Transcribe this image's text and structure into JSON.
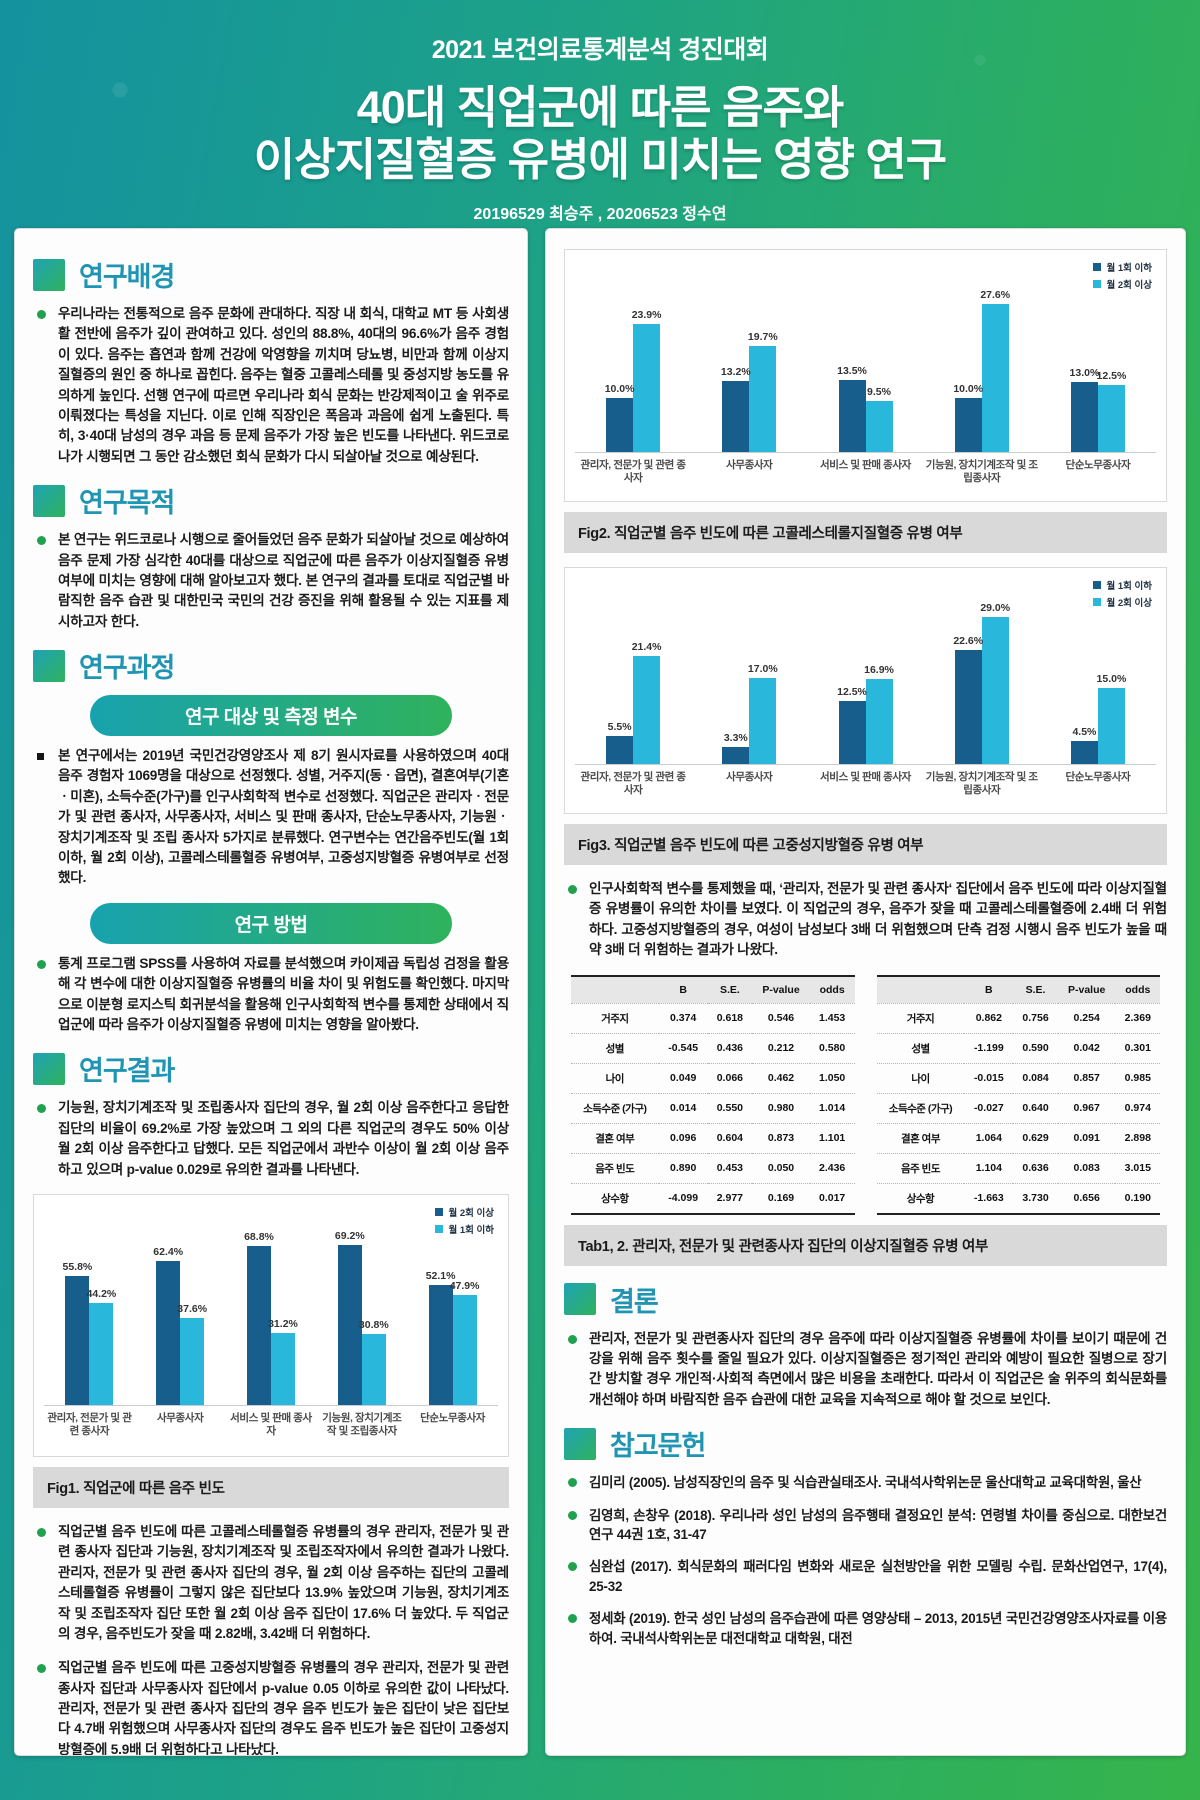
{
  "header": {
    "event": "2021 보건의료통계분석 경진대회",
    "title_line1": "40대 직업군에 따른 음주와",
    "title_line2": "이상지질혈증 유병에 미치는 영향 연구",
    "authors": "20196529 최승주 , 20206523 정수연"
  },
  "colors": {
    "bar_dark": "#175e8c",
    "bar_light": "#29b7dc",
    "accent_teal": "#2095b3",
    "bullet_green": "#21a04d",
    "pill_gradient_from": "#18a2ae",
    "pill_gradient_to": "#2fb25c",
    "caption_bg": "#d9d9d9"
  },
  "left": {
    "background_title": "연구배경",
    "background_body": "우리나라는 전통적으로 음주 문화에 관대하다. 직장 내 회식, 대학교 MT 등 사회생활 전반에 음주가 깊이 관여하고 있다. 성인의 88.8%, 40대의 96.6%가 음주 경험이 있다. 음주는 흡연과 함께 건강에 악영향을 끼치며 당뇨병, 비만과 함께 이상지질혈증의 원인 중 하나로 꼽힌다. 음주는 혈중 고콜레스테롤 및 중성지방 농도를 유의하게 높인다. 선행 연구에 따르면 우리나라 회식 문화는 반강제적이고 술 위주로 이뤄졌다는 특성을 지닌다. 이로 인해 직장인은 폭음과 과음에 쉽게 노출된다. 특히, 3·40대 남성의 경우 과음 등 문제 음주가 가장 높은 빈도를 나타낸다. 위드코로나가 시행되면 그 동안 감소했던 회식 문화가 다시 되살아날 것으로 예상된다.",
    "purpose_title": "연구목적",
    "purpose_body": "본 연구는 위드코로나 시행으로 줄어들었던 음주 문화가 되살아날 것으로 예상하여 음주 문제 가장 심각한 40대를 대상으로 직업군에 따른 음주가 이상지질혈증 유병 여부에 미치는 영향에 대해 알아보고자 했다. 본 연구의 결과를 토대로 직업군별 바람직한 음주 습관 및 대한민국 국민의 건강 증진을 위해 활용될 수 있는 지표를 제시하고자 한다.",
    "process_title": "연구과정",
    "subjects_pill": "연구 대상 및 측정 변수",
    "subjects_body": "본 연구에서는 2019년 국민건강영양조사 제 8기 원시자료를 사용하였으며 40대 음주 경험자 1069명을 대상으로 선정했다. 성별, 거주지(동ㆍ읍면), 결혼여부(기혼ㆍ미혼), 소득수준(가구)를 인구사회학적 변수로 선정했다. 직업군은 관리자ㆍ전문가 및 관련 종사자, 사무종사자, 서비스 및 판매 종사자, 단순노무종사자, 기능원ㆍ장치기계조작 및 조립 종사자 5가지로 분류했다. 연구변수는 연간음주빈도(월 1회 이하, 월 2회 이상), 고콜레스테롤혈증 유병여부, 고중성지방혈증 유병여부로 선정했다.",
    "method_pill": "연구 방법",
    "method_body": "통계 프로그램 SPSS를 사용하여 자료를 분석했으며 카이제곱 독립성 검정을 활용해 각 변수에 대한 이상지질혈증 유병률의 비율 차이 및 위험도를 확인했다. 마지막으로 이분형 로지스틱 회귀분석을 활용해 인구사회학적 변수를 통제한 상태에서 직업군에 따라 음주가 이상지질혈증 유병에 미치는 영향을 알아봤다.",
    "results_title": "연구결과",
    "results_body": "기능원, 장치기계조작 및 조립종사자 집단의 경우, 월 2회 이상 음주한다고 응답한 집단의 비율이 69.2%로 가장 높았으며 그 외의 다른 직업군의 경우도 50% 이상 월 2회 이상 음주한다고 답했다. 모든 직업군에서 과반수 이상이 월 2회 이상 음주하고 있으며 p-value 0.029로 유의한 결과를 나타낸다.",
    "fig1_caption": "Fig1. 직업군에 따른 음주 빈도",
    "finding1": "직업군별 음주 빈도에 따른 고콜레스테롤혈증 유병률의 경우 관리자, 전문가 및 관련 종사자 집단과 기능원, 장치기계조작 및 조립조작자에서 유의한 결과가 나왔다. 관리자, 전문가 및 관련 종사자 집단의 경우, 월 2회 이상 음주하는 집단의 고콜레스테롤혈증 유병률이 그렇지 않은 집단보다 13.9% 높았으며 기능원, 장치기계조작 및 조립조작자 집단 또한 월 2회 이상 음주 집단이 17.6% 더 높았다.  두 직업군의 경우, 음주빈도가 잦을 때 2.82배, 3.42배 더 위험하다.",
    "finding2": "직업군별 음주 빈도에 따른 고중성지방혈증 유병률의 경우 관리자, 전문가 및 관련 종사자 집단과 사무종사자 집단에서 p-value 0.05 이하로 유의한 값이 나타났다. 관리자, 전문가 및 관련 종사자 집단의 경우 음주 빈도가 높은 집단이 낮은 집단보다 4.7배 위험했으며 사무종사자 집단의 경우도 음주 빈도가 높은 집단이 고중성지방혈증에 5.9배 더 위험하다고 나타났다."
  },
  "right": {
    "fig2_caption": "Fig2. 직업군별 음주 빈도에 따른 고콜레스테롤지질혈증 유병 여부",
    "fig3_caption": "Fig3. 직업군별 음주 빈도에 따른 고중성지방혈증 유병 여부",
    "regression_note": "인구사회학적 변수를 통제했을 때, ‘관리자, 전문가 및 관련 종사자‘ 집단에서 음주 빈도에 따라 이상지질혈증 유병률이 유의한 차이를 보였다. 이 직업군의 경우, 음주가 잦을 때 고콜레스테롤혈증에 2.4배 더 위험하다. 고중성지방혈증의 경우, 여성이 남성보다 3배 더 위험했으며 단측 검정 시행시 음주 빈도가 높을 때 약 3배 더 위험하는 결과가 나왔다.",
    "tables_caption": "Tab1, 2. 관리자, 전문가 및 관련종사자 집단의 이상지질혈증 유병 여부",
    "conclusion_title": "결론",
    "conclusion_body": "관리자, 전문가 및 관련종사자 집단의 경우 음주에 따라 이상지질혈증 유병률에 차이를 보이기 때문에 건강을 위해 음주 횟수를 줄일 필요가 있다. 이상지질혈증은 정기적인 관리와 예방이 필요한 질병으로 장기간 방치할 경우 개인적·사회적 측면에서 많은 비용을 초래한다. 따라서 이 직업군은 술 위주의 회식문화를 개선해야 하며 바람직한 음주 습관에 대한 교육을 지속적으로 해야 할 것으로 보인다.",
    "references_title": "참고문헌",
    "references": [
      "김미리 (2005). 남성직장인의 음주 및 식습관실태조사. 국내석사학위논문 울산대학교 교육대학원, 울산",
      "김영희, 손창우 (2018). 우리나라 성인 남성의 음주행태 결정요인 분석: 연령별 차이를 중심으로. 대한보건연구 44권 1호, 31-47",
      "심완섭 (2017). 회식문화의 패러다임 변화와 새로운 실천방안을 위한 모델링 수립. 문화산업연구, 17(4), 25-32",
      "정세화 (2019). 한국 성인 남성의 음주습관에 따른 영양상태 – 2013, 2015년 국민건강영양조사자료를 이용하여. 국내석사학위논문 대전대학교 대학원, 대전"
    ]
  },
  "tables": {
    "columns": [
      "B",
      "S.E.",
      "P-value",
      "odds"
    ],
    "tab1": {
      "rows": [
        {
          "label": "거주지",
          "values": [
            "0.374",
            "0.618",
            "0.546",
            "1.453"
          ]
        },
        {
          "label": "성별",
          "values": [
            "-0.545",
            "0.436",
            "0.212",
            "0.580"
          ]
        },
        {
          "label": "나이",
          "values": [
            "0.049",
            "0.066",
            "0.462",
            "1.050"
          ]
        },
        {
          "label": "소득수준 (가구)",
          "values": [
            "0.014",
            "0.550",
            "0.980",
            "1.014"
          ]
        },
        {
          "label": "결혼 여부",
          "values": [
            "0.096",
            "0.604",
            "0.873",
            "1.101"
          ]
        },
        {
          "label": "음주 빈도",
          "values": [
            "0.890",
            "0.453",
            "0.050",
            "2.436"
          ]
        },
        {
          "label": "상수항",
          "values": [
            "-4.099",
            "2.977",
            "0.169",
            "0.017"
          ]
        }
      ]
    },
    "tab2": {
      "rows": [
        {
          "label": "거주지",
          "values": [
            "0.862",
            "0.756",
            "0.254",
            "2.369"
          ]
        },
        {
          "label": "성별",
          "values": [
            "-1.199",
            "0.590",
            "0.042",
            "0.301"
          ]
        },
        {
          "label": "나이",
          "values": [
            "-0.015",
            "0.084",
            "0.857",
            "0.985"
          ]
        },
        {
          "label": "소득수준 (가구)",
          "values": [
            "-0.027",
            "0.640",
            "0.967",
            "0.974"
          ]
        },
        {
          "label": "결혼 여부",
          "values": [
            "1.064",
            "0.629",
            "0.091",
            "2.898"
          ]
        },
        {
          "label": "음주 빈도",
          "values": [
            "1.104",
            "0.636",
            "0.083",
            "3.015"
          ]
        },
        {
          "label": "상수항",
          "values": [
            "-1.663",
            "3.730",
            "0.656",
            "0.190"
          ]
        }
      ]
    }
  },
  "chart_data": [
    {
      "id": "fig1",
      "type": "bar",
      "title": "Fig1. 직업군에 따른 음주 빈도",
      "categories": [
        "관리자, 전문가 및 관련 종사자",
        "사무종사자",
        "서비스 및 판매 종사자",
        "기능원, 장치기계조작 및 조립종사자",
        "단순노무종사자"
      ],
      "series": [
        {
          "name": "월 2회 이상",
          "color_key": "dark",
          "values": [
            55.8,
            62.4,
            68.8,
            69.2,
            52.1
          ]
        },
        {
          "name": "월 1회 이하",
          "color_key": "light",
          "values": [
            44.2,
            37.6,
            31.2,
            30.8,
            47.9
          ]
        }
      ],
      "unit": "%",
      "ylim": [
        0,
        85
      ],
      "grid": false,
      "legend_position": "top-right"
    },
    {
      "id": "fig2",
      "type": "bar",
      "title": "Fig2. 직업군별 음주 빈도에 따른 고콜레스테롤지질혈증 유병 여부",
      "categories": [
        "관리자, 전문가 및 관련 종사자",
        "사무종사자",
        "서비스 및 판매 종사자",
        "기능원, 장치기계조작 및 조립종사자",
        "단순노무종사자"
      ],
      "series": [
        {
          "name": "월 1회 이하",
          "color_key": "dark",
          "values": [
            10.0,
            13.2,
            13.5,
            10.0,
            13.0
          ]
        },
        {
          "name": "월 2회 이상",
          "color_key": "light",
          "values": [
            23.9,
            19.7,
            9.5,
            27.6,
            12.5
          ]
        }
      ],
      "unit": "%",
      "ylim": [
        0,
        35
      ],
      "grid": false,
      "legend_position": "top-right"
    },
    {
      "id": "fig3",
      "type": "bar",
      "title": "Fig3. 직업군별 음주 빈도에 따른 고중성지방혈증 유병 여부",
      "categories": [
        "관리자, 전문가 및 관련 종사자",
        "사무종사자",
        "서비스 및 판매 종사자",
        "기능원, 장치기계조작 및 조립종사자",
        "단순노무종사자"
      ],
      "series": [
        {
          "name": "월 1회 이하",
          "color_key": "dark",
          "values": [
            5.5,
            3.3,
            12.5,
            22.6,
            4.5
          ]
        },
        {
          "name": "월 2회 이상",
          "color_key": "light",
          "values": [
            21.4,
            17.0,
            16.9,
            29.0,
            15.0
          ]
        }
      ],
      "unit": "%",
      "ylim": [
        0,
        36
      ],
      "grid": false,
      "legend_position": "top-right"
    }
  ]
}
